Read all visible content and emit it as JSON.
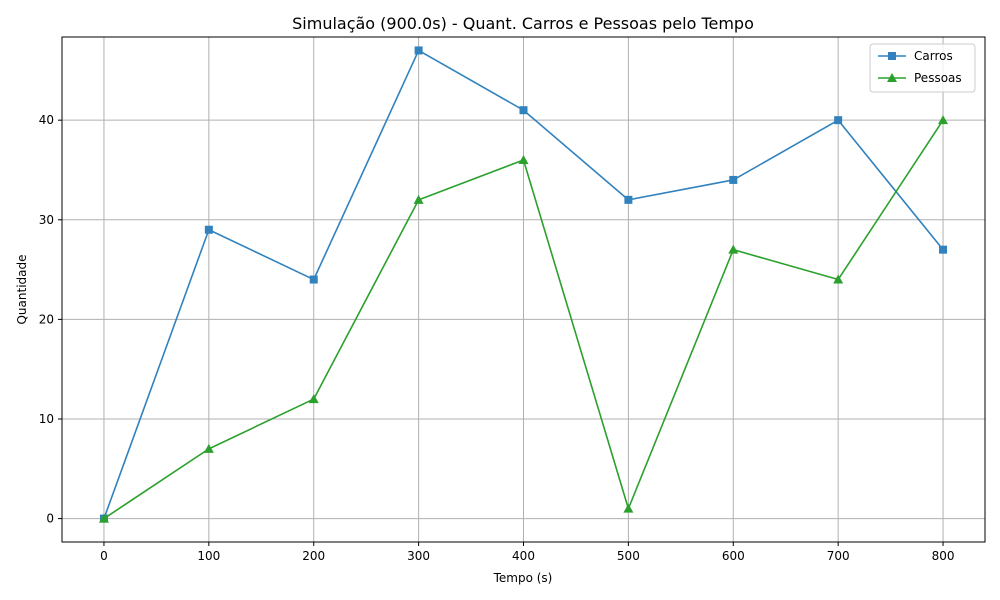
{
  "chart_data": {
    "type": "line",
    "title": "Simulação (900.0s) - Quant. Carros e Pessoas pelo Tempo",
    "xlabel": "Tempo (s)",
    "ylabel": "Quantidade",
    "x": [
      0,
      100,
      200,
      300,
      400,
      500,
      600,
      700,
      800
    ],
    "xlim": [
      -40,
      840
    ],
    "ylim": [
      -2.35,
      48.35
    ],
    "xticks": [
      0,
      100,
      200,
      300,
      400,
      500,
      600,
      700,
      800
    ],
    "yticks": [
      0,
      10,
      20,
      30,
      40
    ],
    "grid": true,
    "legend_position": "top-right",
    "series": [
      {
        "name": "Carros",
        "values": [
          0,
          29,
          24,
          47,
          41,
          32,
          34,
          40,
          27
        ],
        "color": "#3182bd",
        "marker": "square"
      },
      {
        "name": "Pessoas",
        "values": [
          0,
          7,
          12,
          32,
          36,
          1,
          27,
          24,
          40
        ],
        "color": "#2ca02c",
        "marker": "triangle"
      }
    ]
  }
}
